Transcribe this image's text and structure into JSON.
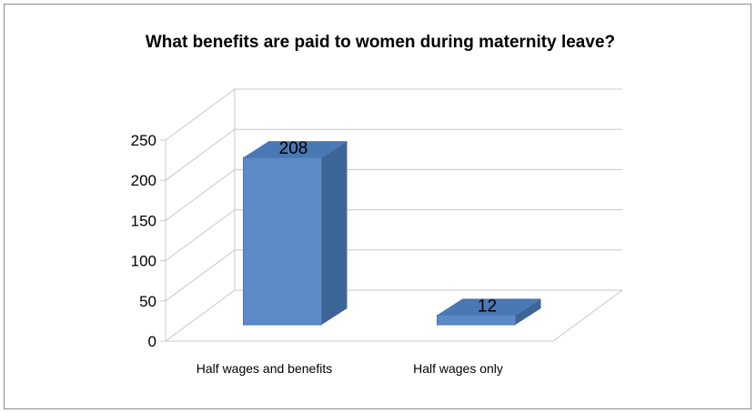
{
  "chart_data": {
    "type": "bar",
    "title": "What benefits are paid to women during maternity leave?",
    "categories": [
      "Half wages and benefits",
      "Half wages only"
    ],
    "values": [
      208,
      12
    ],
    "data_labels": [
      "208",
      "12"
    ],
    "yticks": [
      "0",
      "50",
      "100",
      "150",
      "200",
      "250"
    ],
    "ylim": [
      0,
      250
    ],
    "xlabel": "",
    "ylabel": "",
    "grid": true,
    "legend": "none",
    "style": "3d-column",
    "colors": {
      "bar_front": "#5b8ac6",
      "bar_side": "#3d6597",
      "bar_top": "#4a78b4",
      "gridline": "#c8c8c8",
      "frame": "#8c8c8c"
    }
  }
}
